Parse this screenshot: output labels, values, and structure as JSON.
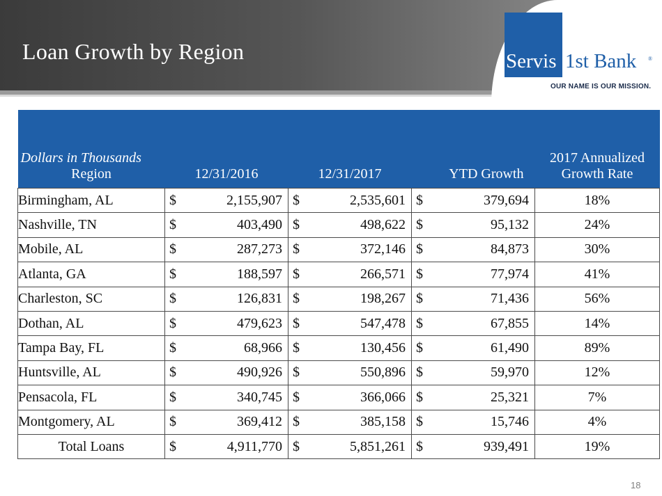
{
  "slide": {
    "title": "Loan Growth by Region",
    "page_number": "18"
  },
  "logo": {
    "brand_left": "Servis",
    "brand_right": "1st Bank",
    "registered": "®",
    "tagline": "OUR NAME IS OUR MISSION."
  },
  "table": {
    "header": {
      "units": "Dollars in Thousands",
      "region": "Region",
      "col_2016": "12/31/2016",
      "col_2017": "12/31/2017",
      "col_ytd": "YTD Growth",
      "col_rate_line1": "2017 Annualized",
      "col_rate_line2": "Growth Rate"
    },
    "currency": "$",
    "rows": [
      {
        "region": "Birmingham, AL",
        "v2016": "2,155,907",
        "v2017": "2,535,601",
        "ytd": "379,694",
        "rate": "18%"
      },
      {
        "region": "Nashville, TN",
        "v2016": "403,490",
        "v2017": "498,622",
        "ytd": "95,132",
        "rate": "24%"
      },
      {
        "region": "Mobile, AL",
        "v2016": "287,273",
        "v2017": "372,146",
        "ytd": "84,873",
        "rate": "30%"
      },
      {
        "region": "Atlanta, GA",
        "v2016": "188,597",
        "v2017": "266,571",
        "ytd": "77,974",
        "rate": "41%"
      },
      {
        "region": "Charleston, SC",
        "v2016": "126,831",
        "v2017": "198,267",
        "ytd": "71,436",
        "rate": "56%"
      },
      {
        "region": "Dothan, AL",
        "v2016": "479,623",
        "v2017": "547,478",
        "ytd": "67,855",
        "rate": "14%"
      },
      {
        "region": "Tampa Bay, FL",
        "v2016": "68,966",
        "v2017": "130,456",
        "ytd": "61,490",
        "rate": "89%"
      },
      {
        "region": "Huntsville, AL",
        "v2016": "490,926",
        "v2017": "550,896",
        "ytd": "59,970",
        "rate": "12%"
      },
      {
        "region": "Pensacola, FL",
        "v2016": "340,745",
        "v2017": "366,066",
        "ytd": "25,321",
        "rate": "7%"
      },
      {
        "region": "Montgomery, AL",
        "v2016": "369,412",
        "v2017": "385,158",
        "ytd": "15,746",
        "rate": "4%"
      }
    ],
    "total": {
      "label": "Total Loans",
      "v2016": "4,911,770",
      "v2017": "5,851,261",
      "ytd": "939,491",
      "rate": "19%"
    }
  },
  "colors": {
    "header_blue": "#1f5fa8",
    "banner_dark": "#3b3b3b"
  }
}
